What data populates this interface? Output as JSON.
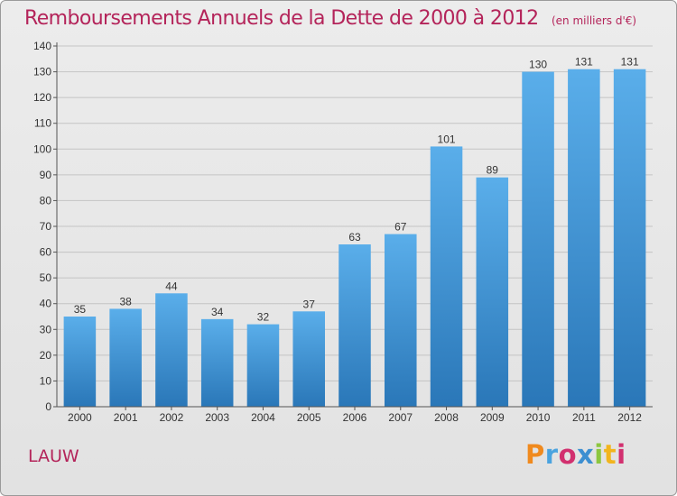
{
  "chart_data": {
    "type": "bar",
    "title": "Remboursements Annuels de la Dette de 2000 à 2012",
    "subtitle": "(en milliers d'€)",
    "categories": [
      "2000",
      "2001",
      "2002",
      "2003",
      "2004",
      "2005",
      "2006",
      "2007",
      "2008",
      "2009",
      "2010",
      "2011",
      "2012"
    ],
    "values": [
      35,
      38,
      44,
      34,
      32,
      37,
      63,
      67,
      101,
      89,
      130,
      131,
      131
    ],
    "ylim": [
      0,
      140
    ],
    "yticks": [
      0,
      10,
      20,
      30,
      40,
      50,
      60,
      70,
      80,
      90,
      100,
      110,
      120,
      130,
      140
    ],
    "xlabel": "",
    "ylabel": "",
    "grid": true,
    "bar_color": "#3d8fd1",
    "data_labels": true
  },
  "footer": {
    "commune": "LAUW",
    "logo_text": "Proxiti",
    "logo_letters": [
      {
        "ch": "P",
        "color": "#f08a1e"
      },
      {
        "ch": "r",
        "color": "#4aa3df"
      },
      {
        "ch": "o",
        "color": "#d2306f"
      },
      {
        "ch": "x",
        "color": "#3d8fd1"
      },
      {
        "ch": "i",
        "color": "#8cc63f"
      },
      {
        "ch": "t",
        "color": "#f2b51e"
      },
      {
        "ch": "i",
        "color": "#d2306f"
      }
    ]
  }
}
